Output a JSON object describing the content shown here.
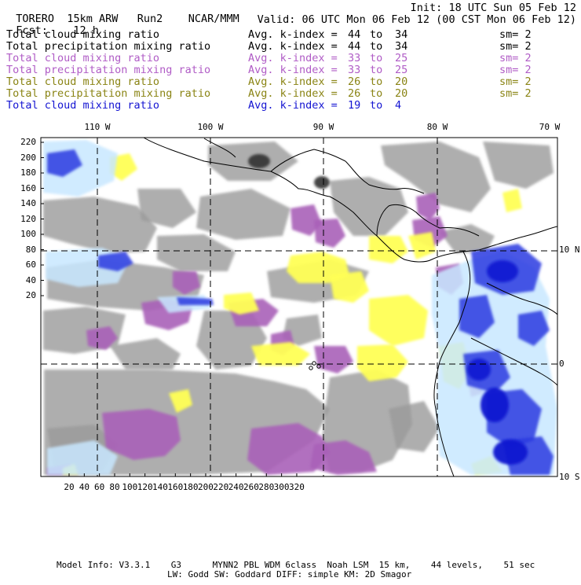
{
  "header": {
    "model": "TORERO",
    "resolution": "15km ARW",
    "run": "Run2",
    "center": "NCAR/MMM",
    "init": "Init: 18 UTC Sun 05 Feb 12",
    "fcst_label": "Fcst:",
    "fcst_value": "12 h",
    "valid": "Valid: 06 UTC Mon 06 Feb 12 (00 CST Mon 06 Feb 12)"
  },
  "legend": [
    {
      "field": "Total cloud mixing ratio",
      "kindex": "Avg. k-index =",
      "from": "44",
      "to_word": "to",
      "to": "34",
      "sm": "sm= 2",
      "color": "#000000"
    },
    {
      "field": "Total precipitation mixing ratio",
      "kindex": "Avg. k-index =",
      "from": "44",
      "to_word": "to",
      "to": "34",
      "sm": "sm= 2",
      "color": "#000000"
    },
    {
      "field": "Total cloud mixing ratio",
      "kindex": "Avg. k-index =",
      "from": "33",
      "to_word": "to",
      "to": "25",
      "sm": "sm= 2",
      "color": "#b05cc6"
    },
    {
      "field": "Total precipitation mixing ratio",
      "kindex": "Avg. k-index =",
      "from": "33",
      "to_word": "to",
      "to": "25",
      "sm": "sm= 2",
      "color": "#b05cc6"
    },
    {
      "field": "Total cloud mixing ratio",
      "kindex": "Avg. k-index =",
      "from": "26",
      "to_word": "to",
      "to": "20",
      "sm": "sm= 2",
      "color": "#8a8414"
    },
    {
      "field": "Total precipitation mixing ratio",
      "kindex": "Avg. k-index =",
      "from": "26",
      "to_word": "to",
      "to": "20",
      "sm": "sm= 2",
      "color": "#8a8414"
    },
    {
      "field": "Total cloud mixing ratio",
      "kindex": "Avg. k-index =",
      "from": "19",
      "to_word": "to",
      "to": "4",
      "sm": "",
      "color": "#1414d2"
    }
  ],
  "map": {
    "lon_labels": [
      "110 W",
      "100 W",
      "90 W",
      "80 W",
      "70 W"
    ],
    "lat_labels": [
      "10 N",
      "0",
      "10 S"
    ],
    "x_ticks": [
      "20",
      "40",
      "60",
      "80",
      "100",
      "120",
      "140",
      "160",
      "180",
      "200",
      "220",
      "240",
      "260",
      "280",
      "300",
      "320"
    ],
    "y_ticks": [
      "220",
      "200",
      "180",
      "160",
      "140",
      "120",
      "100",
      "80",
      "60",
      "40",
      "20"
    ],
    "colors": {
      "gray": "#9a9a9a",
      "purple": "#a860b8",
      "yellow": "#ffff55",
      "light_blue": "#c8e8ff",
      "blue": "#2a3ae0",
      "dark_blue": "#0a14d0",
      "coast": "#000000"
    }
  },
  "footer": {
    "line1": "Model Info: V3.3.1    G3      MYNN2 PBL WDM 6class  Noah LSM  15 km,    44 levels,    51 sec",
    "line2": "LW: Godd SW: Goddard DIFF: simple KM: 2D Smagor"
  }
}
